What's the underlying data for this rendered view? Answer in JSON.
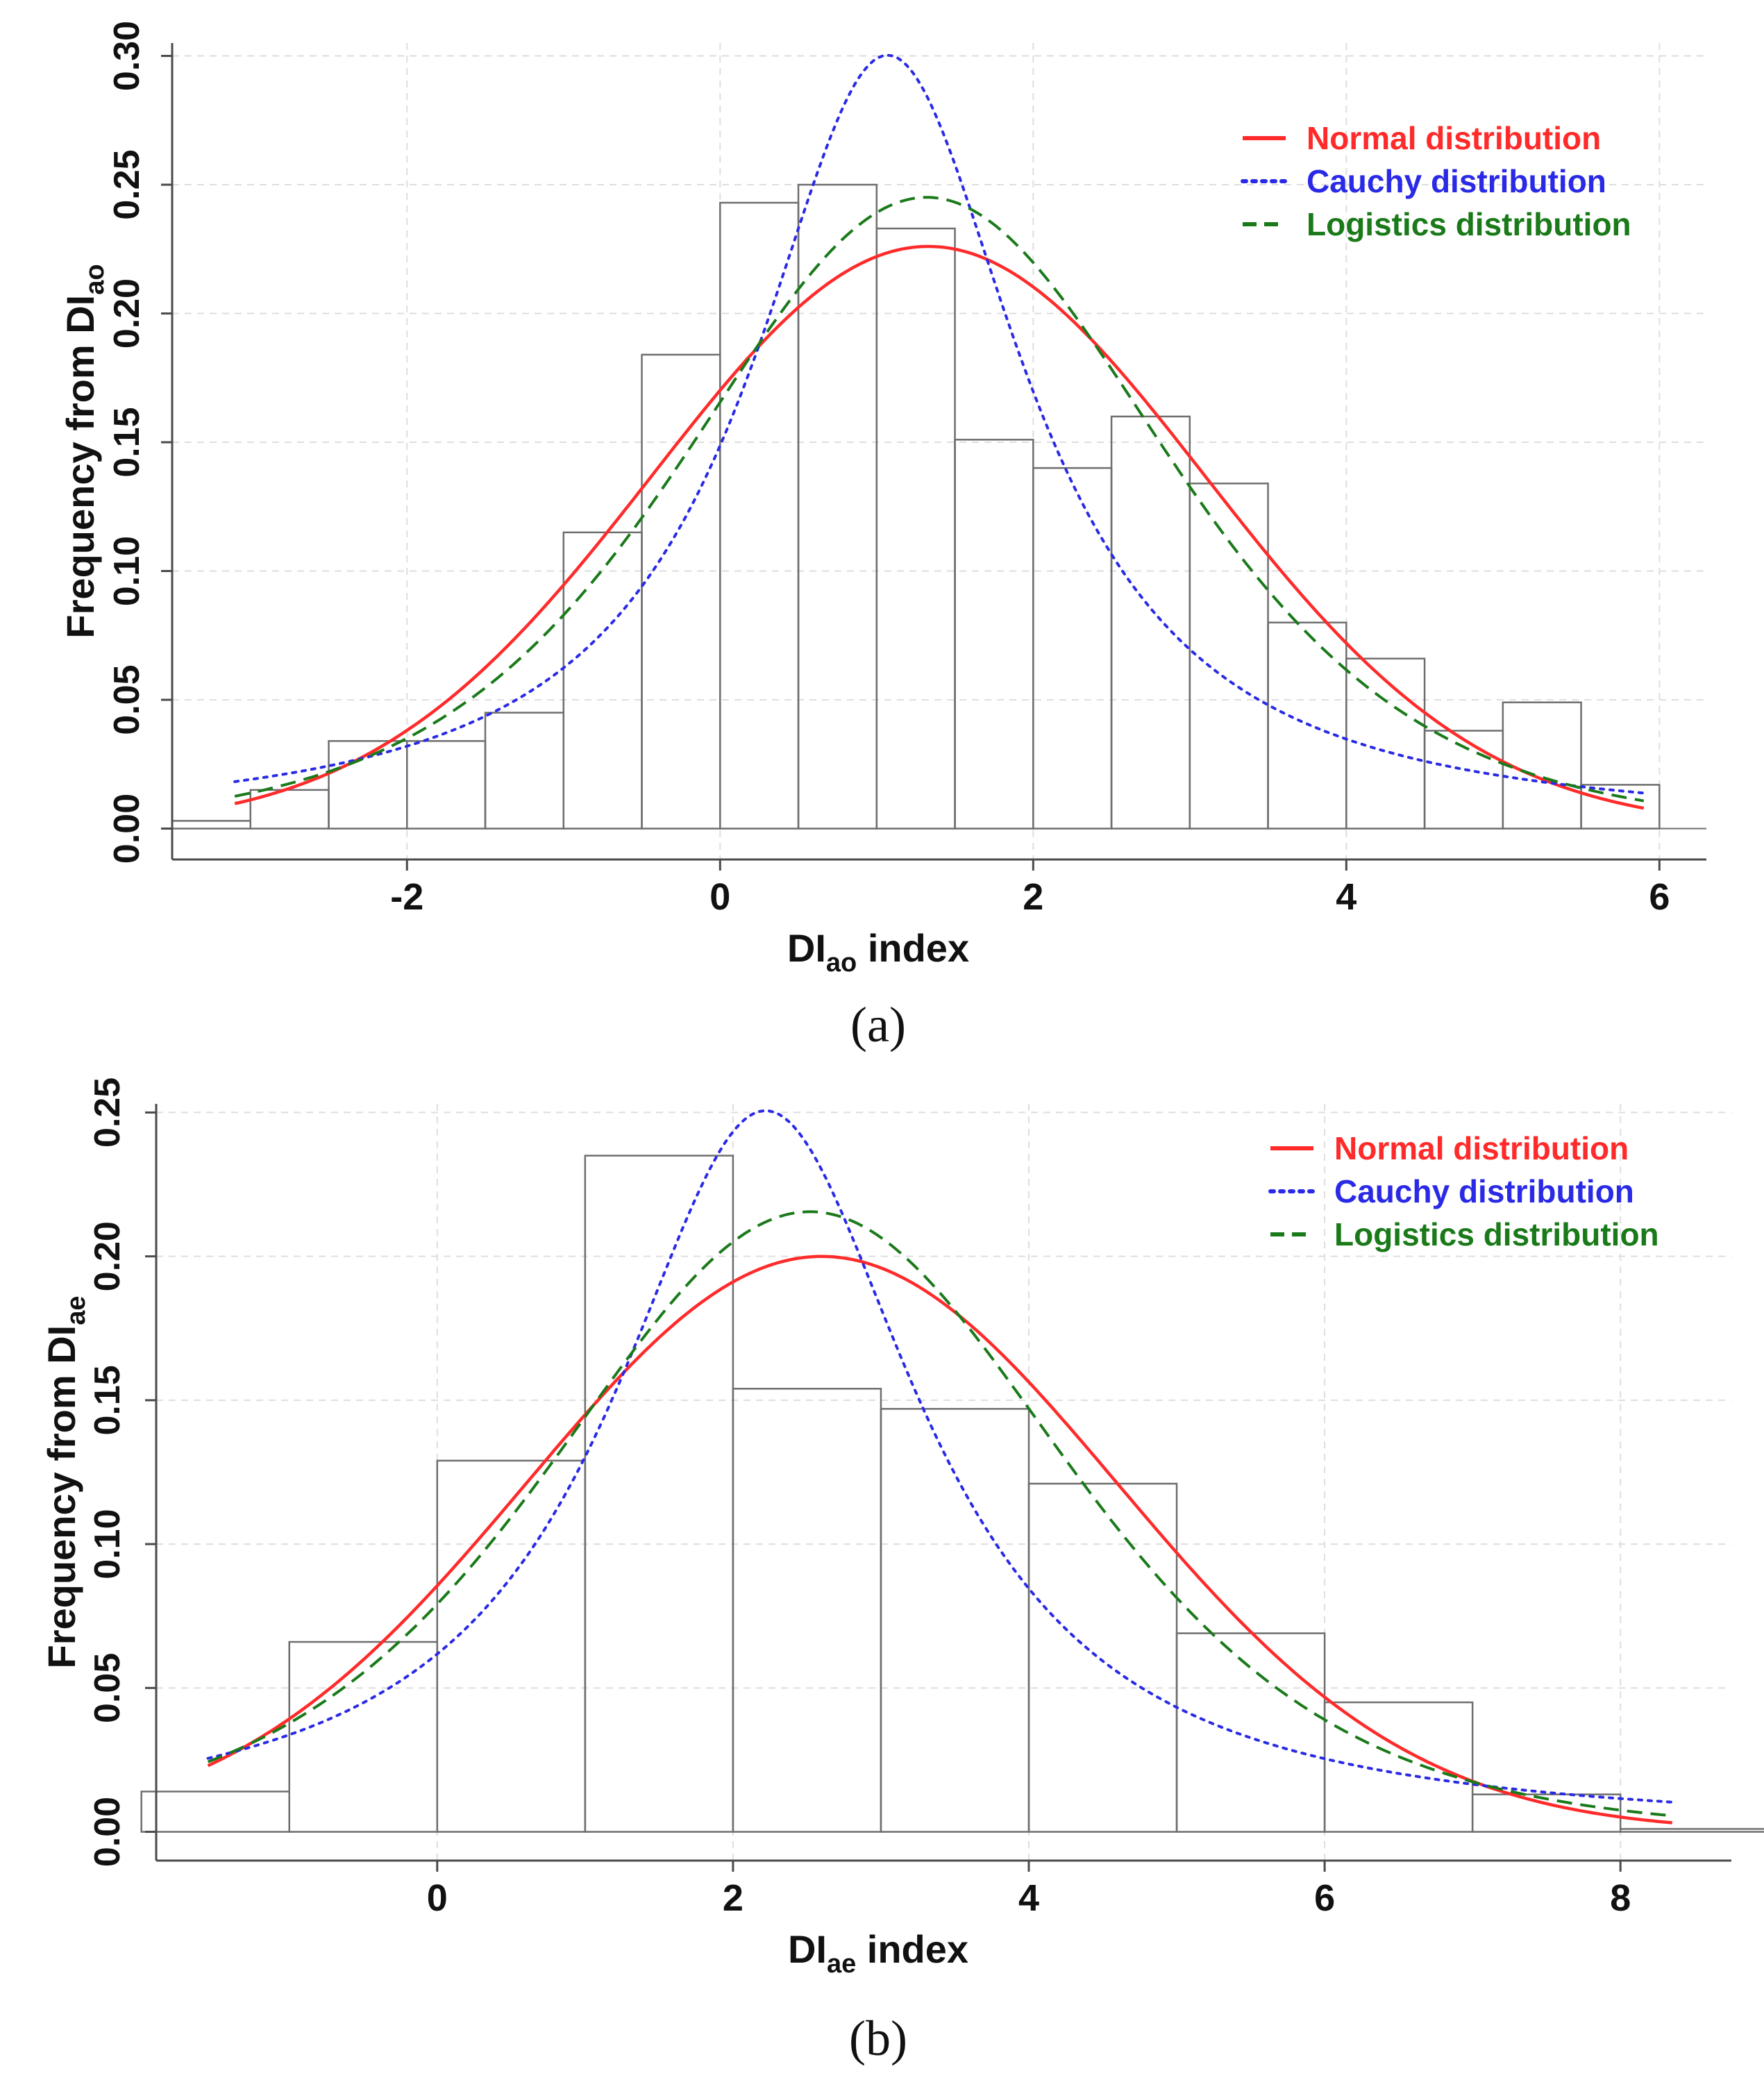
{
  "colors": {
    "normal": "#ff2a2a",
    "cauchy": "#2a2ae6",
    "logistic": "#1a7a1a",
    "bar_stroke": "#6e6e6e",
    "grid": "#dedede",
    "axis": "#4a4a4a"
  },
  "chart_data": [
    {
      "type": "bar",
      "panel": "a",
      "panel_label": "(a)",
      "xlabel_main": "DI",
      "xlabel_sub": "ao",
      "xlabel_tail": " index",
      "ylabel_main": "Frequency from DI",
      "ylabel_sub": "ao",
      "xlim": [
        -3.5,
        6.3
      ],
      "ylim": [
        -0.012,
        0.305
      ],
      "xticks": [
        -2,
        0,
        2,
        4,
        6
      ],
      "yticks": [
        0.0,
        0.05,
        0.1,
        0.15,
        0.2,
        0.25,
        0.3
      ],
      "ytick_labels": [
        "0.00",
        "0.05",
        "0.10",
        "0.15",
        "0.20",
        "0.25",
        "0.30"
      ],
      "legend_position": "top-right",
      "bin_edges": [
        -3.5,
        -3.0,
        -2.5,
        -2.0,
        -1.5,
        -1.0,
        -0.5,
        0.0,
        0.5,
        1.0,
        1.5,
        2.0,
        2.5,
        3.0,
        3.5,
        4.0,
        4.5,
        5.0,
        5.5,
        6.0
      ],
      "values": [
        0.003,
        0.015,
        0.034,
        0.034,
        0.045,
        0.115,
        0.184,
        0.243,
        0.25,
        0.233,
        0.151,
        0.14,
        0.16,
        0.134,
        0.08,
        0.066,
        0.038,
        0.049,
        0.017
      ],
      "series": [
        {
          "name": "Normal distribution",
          "kind": "normal",
          "style": "solid",
          "params": {
            "mean": 1.33,
            "sd": 1.765
          },
          "range": [
            -3.1,
            5.9
          ]
        },
        {
          "name": "Cauchy distribution",
          "kind": "cauchy",
          "style": "dotted",
          "params": {
            "loc": 1.07,
            "scale": 1.06
          },
          "range": [
            -3.1,
            5.9
          ]
        },
        {
          "name": "Logistics distribution",
          "kind": "logistic",
          "style": "dashed",
          "params": {
            "loc": 1.32,
            "scale": 1.02
          },
          "range": [
            -3.1,
            5.9
          ]
        }
      ]
    },
    {
      "type": "bar",
      "panel": "b",
      "panel_label": "(b)",
      "xlabel_main": "DI",
      "xlabel_sub": "ae",
      "xlabel_tail": " index",
      "ylabel_main": "Frequency from DI",
      "ylabel_sub": "ae",
      "xlim": [
        -1.9,
        8.75
      ],
      "ylim": [
        -0.01,
        0.253
      ],
      "xticks": [
        0,
        2,
        4,
        6,
        8
      ],
      "yticks": [
        0.0,
        0.05,
        0.1,
        0.15,
        0.2,
        0.25
      ],
      "ytick_labels": [
        "0.00",
        "0.05",
        "0.10",
        "0.15",
        "0.20",
        "0.25"
      ],
      "legend_position": "top-right",
      "bin_edges": [
        -2,
        -1,
        0,
        1,
        2,
        3,
        4,
        5,
        6,
        7,
        8,
        9
      ],
      "values": [
        0.014,
        0.066,
        0.129,
        0.235,
        0.154,
        0.147,
        0.121,
        0.069,
        0.045,
        0.013,
        0.001
      ],
      "series": [
        {
          "name": "Normal distribution",
          "kind": "normal",
          "style": "solid",
          "params": {
            "mean": 2.6,
            "sd": 1.995
          },
          "range": [
            -1.55,
            8.35
          ]
        },
        {
          "name": "Cauchy distribution",
          "kind": "cauchy",
          "style": "dotted",
          "params": {
            "loc": 2.22,
            "scale": 1.27
          },
          "range": [
            -1.55,
            8.35
          ]
        },
        {
          "name": "Logistics distribution",
          "kind": "logistic",
          "style": "dashed",
          "params": {
            "loc": 2.52,
            "scale": 1.16
          },
          "range": [
            -1.55,
            8.35
          ]
        }
      ]
    }
  ]
}
